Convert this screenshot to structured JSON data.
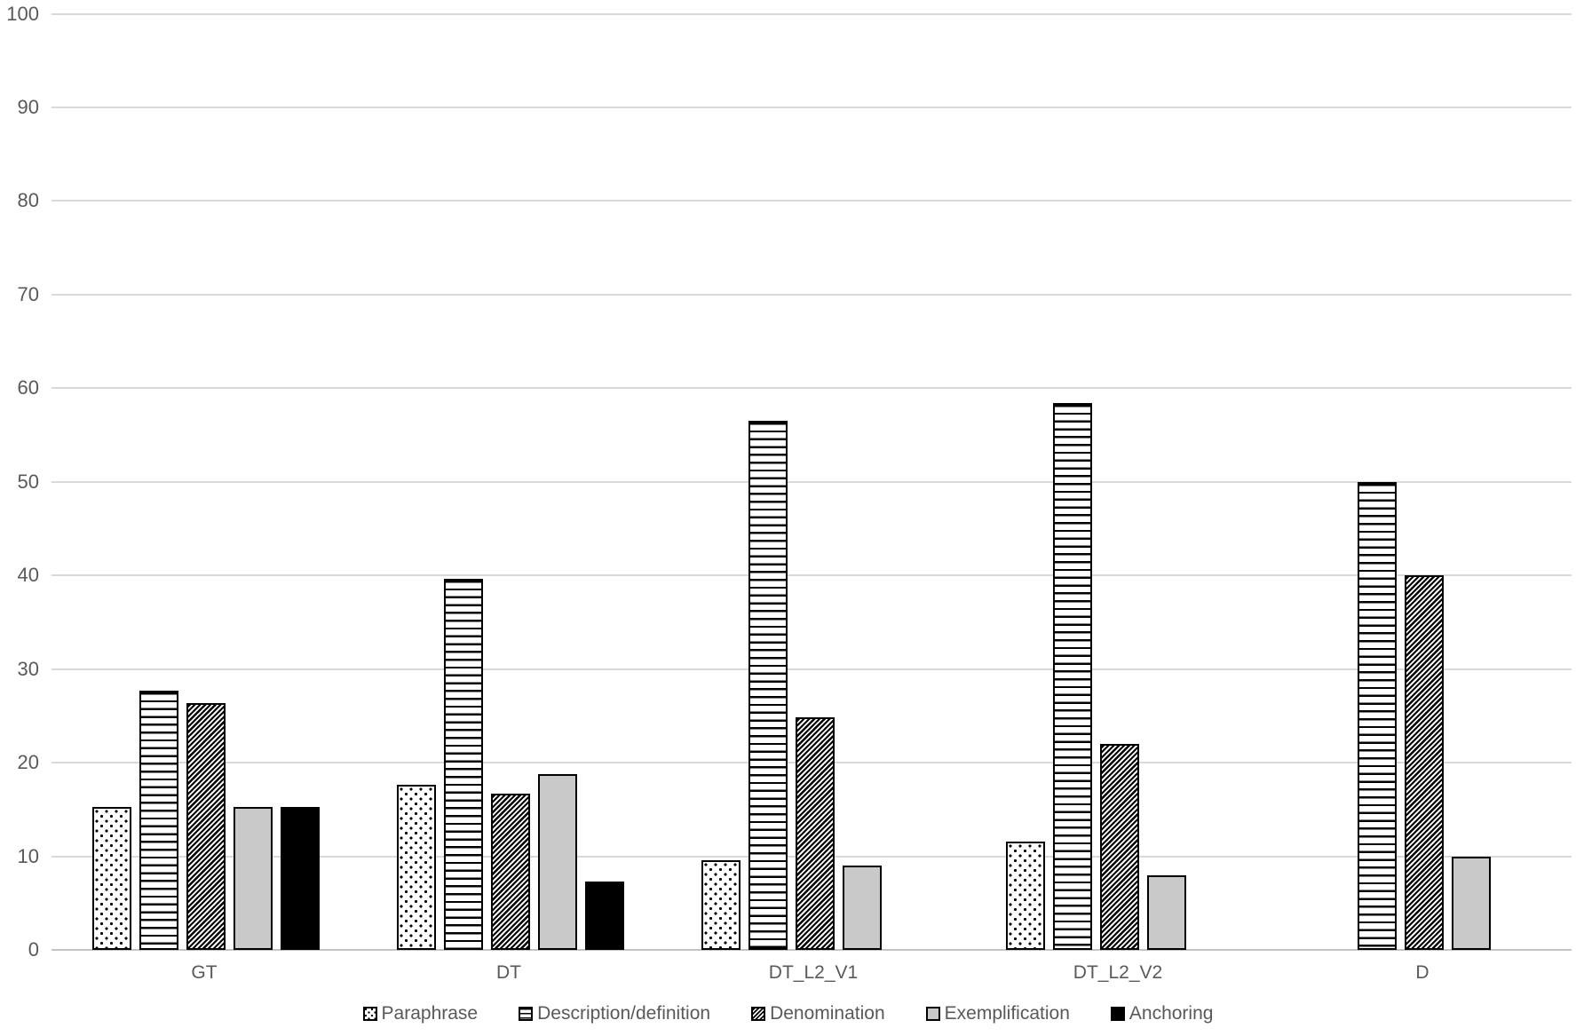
{
  "chart_data": {
    "type": "bar",
    "title": "",
    "categories": [
      "GT",
      "DT",
      "DT_L2_V1",
      "DT_L2_V2",
      "D"
    ],
    "series": [
      {
        "name": "Paraphrase",
        "pattern": "dots",
        "values": [
          15.3,
          17.6,
          9.6,
          11.6,
          0
        ]
      },
      {
        "name": "Description/definition",
        "pattern": "hlines",
        "values": [
          27.7,
          39.6,
          56.5,
          58.4,
          50
        ]
      },
      {
        "name": "Denomination",
        "pattern": "diagonal",
        "values": [
          26.4,
          16.7,
          24.8,
          22,
          40
        ]
      },
      {
        "name": "Exemplification",
        "pattern": "solid-gray",
        "values": [
          15.3,
          18.8,
          9,
          8,
          10
        ]
      },
      {
        "name": "Anchoring",
        "pattern": "solid-black",
        "values": [
          15.3,
          7.3,
          0,
          0,
          0
        ]
      }
    ],
    "xlabel": "",
    "ylabel": "",
    "ylim": [
      0,
      100
    ],
    "yticks": [
      0,
      10,
      20,
      30,
      40,
      50,
      60,
      70,
      80,
      90,
      100
    ],
    "grid": true,
    "legend_position": "bottom"
  },
  "colors": {
    "background": "#ffffff",
    "gridline": "#d9d9d9",
    "axis_line": "#c3c3c3",
    "tick_label": "#595959",
    "bar_outline": "#000000",
    "bar_fill": "#ffffff",
    "pattern_ink": "#000000",
    "exemplification_fill": "#c9c9c9",
    "anchoring_fill": "#000000"
  }
}
